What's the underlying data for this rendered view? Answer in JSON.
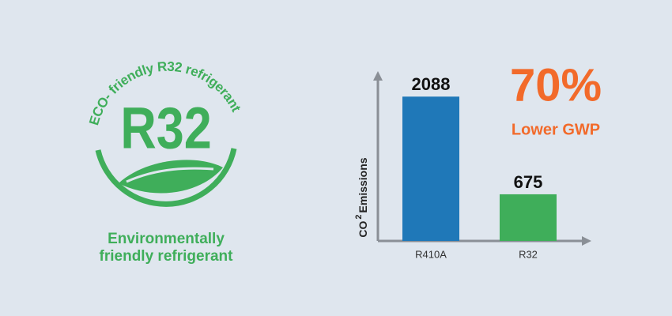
{
  "logo": {
    "arc_text": "ECO- friendly R32 refrigerant",
    "center_text": "R32",
    "caption": [
      "Environmentally",
      "friendly refrigerant"
    ]
  },
  "chart_data": {
    "type": "bar",
    "categories": [
      "R410A",
      "R32"
    ],
    "values": [
      2088,
      675
    ],
    "colors": [
      "#1f78b8",
      "#3fae5a"
    ],
    "y_label": [
      "CO",
      "2",
      "Emissions"
    ],
    "ylim": [
      0,
      2400
    ],
    "callout": "70%",
    "callout_text": "Lower GWP"
  }
}
